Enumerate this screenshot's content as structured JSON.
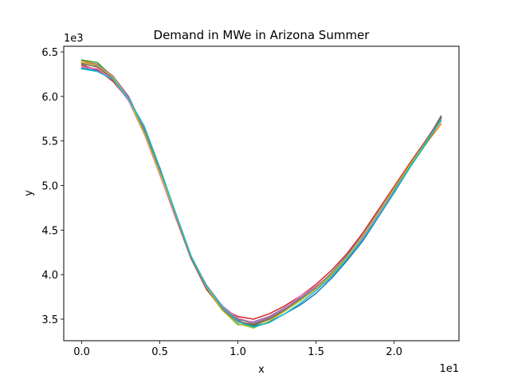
{
  "chart_data": {
    "type": "line",
    "title": "Demand in MWe in Arizona Summer",
    "xlabel": "x",
    "ylabel": "y",
    "x_offset_label": "1e1",
    "y_offset_label": "1e3",
    "xlim": [
      -1.15,
      24.15
    ],
    "ylim": [
      3258,
      6563
    ],
    "x_ticks": [
      0,
      5,
      10,
      15,
      20
    ],
    "x_tick_labels": [
      "0.0",
      "0.5",
      "1.0",
      "1.5",
      "2.0"
    ],
    "y_ticks": [
      3500,
      4000,
      4500,
      5000,
      5500,
      6000,
      6500
    ],
    "y_tick_labels": [
      "3.5",
      "4.0",
      "4.5",
      "5.0",
      "5.5",
      "6.0",
      "6.5"
    ],
    "grid": false,
    "legend": "none",
    "x": [
      0,
      1,
      2,
      3,
      4,
      5,
      6,
      7,
      8,
      9,
      10,
      11,
      12,
      13,
      14,
      15,
      16,
      17,
      18,
      19,
      20,
      21,
      22,
      23
    ],
    "series": [
      {
        "color": "#1f77b4",
        "values": [
          6320,
          6290,
          6180,
          5960,
          5620,
          5200,
          4690,
          4190,
          3860,
          3640,
          3480,
          3420,
          3470,
          3560,
          3660,
          3790,
          3960,
          4160,
          4380,
          4650,
          4920,
          5200,
          5480,
          5780
        ]
      },
      {
        "color": "#ff7f0e",
        "values": [
          6400,
          6360,
          6230,
          5990,
          5600,
          5130,
          4640,
          4180,
          3850,
          3620,
          3510,
          3460,
          3520,
          3610,
          3720,
          3840,
          4000,
          4200,
          4440,
          4710,
          4980,
          5240,
          5460,
          5690
        ]
      },
      {
        "color": "#2ca02c",
        "values": [
          6410,
          6380,
          6220,
          5990,
          5640,
          5170,
          4670,
          4200,
          3860,
          3600,
          3440,
          3430,
          3500,
          3600,
          3720,
          3850,
          4020,
          4210,
          4430,
          4680,
          4940,
          5200,
          5460,
          5730
        ]
      },
      {
        "color": "#d62728",
        "values": [
          6350,
          6300,
          6170,
          5960,
          5630,
          5160,
          4680,
          4180,
          3830,
          3620,
          3530,
          3500,
          3560,
          3650,
          3760,
          3890,
          4050,
          4240,
          4470,
          4730,
          4990,
          5250,
          5500,
          5760
        ]
      },
      {
        "color": "#9467bd",
        "values": [
          6380,
          6360,
          6230,
          6000,
          5630,
          5150,
          4660,
          4190,
          3840,
          3610,
          3490,
          3470,
          3530,
          3630,
          3740,
          3860,
          4020,
          4220,
          4450,
          4710,
          4970,
          5230,
          5490,
          5760
        ]
      },
      {
        "color": "#8c564b",
        "values": [
          6370,
          6330,
          6200,
          5980,
          5610,
          5140,
          4660,
          4180,
          3840,
          3600,
          3470,
          3440,
          3500,
          3600,
          3710,
          3840,
          4000,
          4200,
          4430,
          4690,
          4960,
          5230,
          5490,
          5770
        ]
      },
      {
        "color": "#e377c2",
        "values": [
          6330,
          6310,
          6190,
          5950,
          5580,
          5120,
          4650,
          4200,
          3880,
          3650,
          3510,
          3460,
          3510,
          3620,
          3760,
          3870,
          4010,
          4200,
          4420,
          4680,
          4950,
          5220,
          5480,
          5750
        ]
      },
      {
        "color": "#7f7f7f",
        "values": [
          6360,
          6340,
          6210,
          5980,
          5620,
          5150,
          4670,
          4190,
          3850,
          3620,
          3500,
          3450,
          3510,
          3610,
          3730,
          3850,
          4020,
          4210,
          4440,
          4700,
          4960,
          5220,
          5480,
          5750
        ]
      },
      {
        "color": "#bcbd22",
        "values": [
          6380,
          6350,
          6220,
          5970,
          5590,
          5140,
          4690,
          4210,
          3860,
          3600,
          3450,
          3400,
          3480,
          3590,
          3710,
          3840,
          4000,
          4200,
          4440,
          4700,
          4970,
          5230,
          5480,
          5720
        ]
      },
      {
        "color": "#17becf",
        "values": [
          6310,
          6280,
          6190,
          5970,
          5670,
          5200,
          4700,
          4210,
          3870,
          3640,
          3470,
          3410,
          3460,
          3560,
          3680,
          3820,
          3980,
          4180,
          4400,
          4660,
          4930,
          5200,
          5470,
          5730
        ]
      }
    ]
  }
}
